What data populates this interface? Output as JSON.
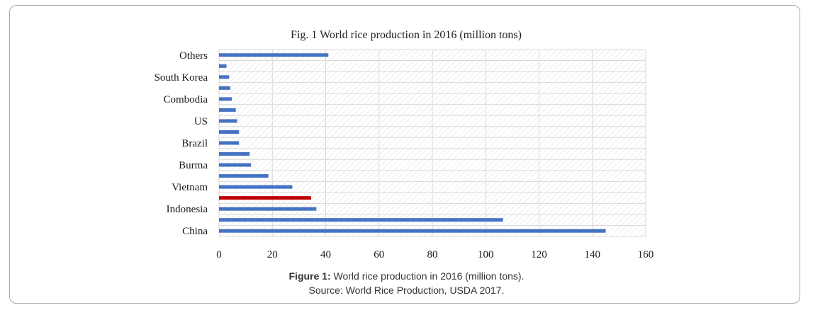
{
  "caption": {
    "label": "Figure 1:",
    "text": " World rice production in 2016 (million tons).",
    "source": "Source: World Rice Production, USDA 2017."
  },
  "colors": {
    "bar": "#4472c4",
    "highlight": "#c00000",
    "grid": "#d9d9d9",
    "hatch": "#e3e3e3"
  },
  "chart_data": {
    "type": "bar",
    "orientation": "horizontal",
    "title": "Fig. 1 World rice production in 2016  (million  tons)",
    "xlabel": "",
    "ylabel": "",
    "xlim": [
      0,
      160
    ],
    "xticks": [
      0,
      20,
      40,
      60,
      80,
      100,
      120,
      140,
      160
    ],
    "grid": true,
    "categories_bottom_to_top": [
      "China",
      "",
      "Indonesia",
      "",
      "Vietnam",
      "",
      "Burma",
      "",
      "Brazil",
      "",
      "US",
      "",
      "Combodia",
      "",
      "South Korea",
      "",
      "Others"
    ],
    "values_bottom_to_top": [
      145,
      106.5,
      36.5,
      34.5,
      27.5,
      18.5,
      12,
      11.5,
      7.5,
      7.5,
      6.8,
      6.3,
      4.8,
      4.2,
      3.8,
      2.8,
      41
    ],
    "highlight_index": 3
  }
}
